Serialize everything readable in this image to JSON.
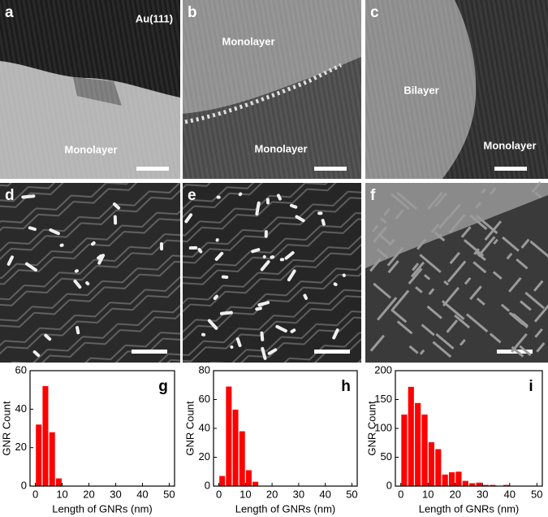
{
  "panels": [
    {
      "label": "a",
      "annotations": [
        "Au(111)",
        "Monolayer"
      ]
    },
    {
      "label": "b",
      "annotations": [
        "Monolayer",
        "Monolayer"
      ]
    },
    {
      "label": "c",
      "annotations": [
        "Bilayer",
        "Monolayer"
      ]
    },
    {
      "label": "d",
      "annotations": []
    },
    {
      "label": "e",
      "annotations": []
    },
    {
      "label": "f",
      "annotations": []
    }
  ],
  "chart_data": [
    {
      "type": "histogram",
      "panel_label": "g",
      "xlabel": "Length of GNRs (nm)",
      "ylabel": "GNR Count",
      "color": "#ff0000",
      "bins": [
        0,
        2.5,
        5,
        7.5,
        10
      ],
      "values": [
        32,
        52,
        28,
        4
      ],
      "xlim": [
        -2,
        52
      ],
      "xticks": [
        0,
        10,
        20,
        30,
        40,
        50
      ],
      "ylim": [
        0,
        60
      ],
      "yticks": [
        0,
        20,
        40,
        60
      ]
    },
    {
      "type": "histogram",
      "panel_label": "h",
      "xlabel": "Length of GNRs (nm)",
      "ylabel": "GNR Count",
      "color": "#ff0000",
      "bins": [
        0,
        2.5,
        5,
        7.5,
        10,
        12.5,
        15
      ],
      "values": [
        7,
        69,
        53,
        38,
        11,
        3
      ],
      "xlim": [
        -2,
        52
      ],
      "xticks": [
        0,
        10,
        20,
        30,
        40,
        50
      ],
      "ylim": [
        0,
        80
      ],
      "yticks": [
        0,
        20,
        40,
        60,
        80
      ]
    },
    {
      "type": "histogram",
      "panel_label": "i",
      "xlabel": "Length of GNRs (nm)",
      "ylabel": "GNR Count",
      "color": "#ff0000",
      "bins": [
        0,
        2.5,
        5,
        7.5,
        10,
        12.5,
        15,
        17.5,
        20,
        22.5,
        25,
        27.5,
        30,
        32.5,
        35,
        37.5,
        40,
        42.5
      ],
      "values": [
        124,
        172,
        144,
        124,
        76,
        64,
        20,
        24,
        25,
        9,
        5,
        6,
        2,
        2,
        0,
        2,
        0
      ],
      "xlim": [
        -2,
        52
      ],
      "xticks": [
        0,
        10,
        20,
        30,
        40,
        50
      ],
      "ylim": [
        0,
        200
      ],
      "yticks": [
        0,
        50,
        100,
        150,
        200
      ]
    }
  ]
}
